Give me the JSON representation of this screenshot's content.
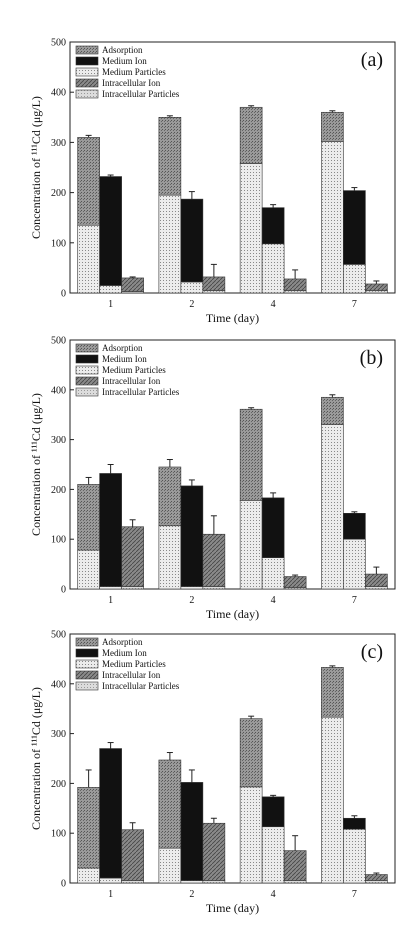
{
  "legend_labels": [
    "Adsorption",
    "Medium Ion",
    "Medium Particles",
    "Intracellular Ion",
    "Intracellular Particles"
  ],
  "series_colors": {
    "Adsorption": "#8c8c8c",
    "Medium Ion": "#111111",
    "Medium Particles": "#e6e6e6",
    "Intracellular Ion": "#7a7a7a",
    "Intracellular Particles": "#d4d4d4"
  },
  "chart_data": [
    {
      "type": "bar",
      "panel_label": "(a)",
      "xlabel": "Time (day)",
      "ylabel": "Concentration of ¹¹¹Cd (μg/L)",
      "ylim": [
        0,
        500
      ],
      "yticks": [
        "0",
        "100",
        "200",
        "300",
        "400",
        "500"
      ],
      "categories": [
        "1",
        "2",
        "4",
        "7"
      ],
      "legend": "top-left",
      "grid": false,
      "stacks": [
        {
          "segments": [
            {
              "series": "Medium Particles",
              "value": 135
            },
            {
              "series": "Adsorption",
              "value": 175
            }
          ],
          "error": 4
        },
        {
          "segments": [
            {
              "series": "Medium Particles",
              "value": 15
            },
            {
              "series": "Medium Ion",
              "value": 217
            }
          ],
          "error": 3
        },
        {
          "segments": [
            {
              "series": "Intracellular Particles",
              "value": 3
            },
            {
              "series": "Intracellular Ion",
              "value": 27
            }
          ],
          "error": 2
        }
      ],
      "groups": [
        [
          {
            "segments": [
              {
                "series": "Medium Particles",
                "value": 135
              },
              {
                "series": "Adsorption",
                "value": 175
              }
            ],
            "error": 4
          },
          {
            "segments": [
              {
                "series": "Medium Particles",
                "value": 15
              },
              {
                "series": "Medium Ion",
                "value": 217
              }
            ],
            "error": 3
          },
          {
            "segments": [
              {
                "series": "Intracellular Particles",
                "value": 3
              },
              {
                "series": "Intracellular Ion",
                "value": 27
              }
            ],
            "error": 2
          }
        ],
        [
          {
            "segments": [
              {
                "series": "Medium Particles",
                "value": 195
              },
              {
                "series": "Adsorption",
                "value": 155
              }
            ],
            "error": 3
          },
          {
            "segments": [
              {
                "series": "Medium Particles",
                "value": 22
              },
              {
                "series": "Medium Ion",
                "value": 165
              }
            ],
            "error": 15
          },
          {
            "segments": [
              {
                "series": "Intracellular Particles",
                "value": 5
              },
              {
                "series": "Intracellular Ion",
                "value": 27
              }
            ],
            "error": 25
          }
        ],
        [
          {
            "segments": [
              {
                "series": "Medium Particles",
                "value": 258
              },
              {
                "series": "Adsorption",
                "value": 112
              }
            ],
            "error": 3
          },
          {
            "segments": [
              {
                "series": "Medium Particles",
                "value": 98
              },
              {
                "series": "Medium Ion",
                "value": 72
              }
            ],
            "error": 6
          },
          {
            "segments": [
              {
                "series": "Intracellular Particles",
                "value": 5
              },
              {
                "series": "Intracellular Ion",
                "value": 23
              }
            ],
            "error": 18
          }
        ],
        [
          {
            "segments": [
              {
                "series": "Medium Particles",
                "value": 302
              },
              {
                "series": "Adsorption",
                "value": 58
              }
            ],
            "error": 3
          },
          {
            "segments": [
              {
                "series": "Medium Particles",
                "value": 57
              },
              {
                "series": "Medium Ion",
                "value": 147
              }
            ],
            "error": 6
          },
          {
            "segments": [
              {
                "series": "Intracellular Particles",
                "value": 5
              },
              {
                "series": "Intracellular Ion",
                "value": 13
              }
            ],
            "error": 6
          }
        ]
      ]
    },
    {
      "type": "bar",
      "panel_label": "(b)",
      "xlabel": "Time (day)",
      "ylabel": "Concentration of ¹¹¹Cd (μg/L)",
      "ylim": [
        0,
        500
      ],
      "yticks": [
        "0",
        "100",
        "200",
        "300",
        "400",
        "500"
      ],
      "categories": [
        "1",
        "2",
        "4",
        "7"
      ],
      "legend": "top-left",
      "grid": false,
      "groups": [
        [
          {
            "segments": [
              {
                "series": "Medium Particles",
                "value": 78
              },
              {
                "series": "Adsorption",
                "value": 132
              }
            ],
            "error": 14
          },
          {
            "segments": [
              {
                "series": "Medium Particles",
                "value": 5
              },
              {
                "series": "Medium Ion",
                "value": 227
              }
            ],
            "error": 18
          },
          {
            "segments": [
              {
                "series": "Intracellular Particles",
                "value": 5
              },
              {
                "series": "Intracellular Ion",
                "value": 120
              }
            ],
            "error": 14
          }
        ],
        [
          {
            "segments": [
              {
                "series": "Medium Particles",
                "value": 127
              },
              {
                "series": "Adsorption",
                "value": 118
              }
            ],
            "error": 15
          },
          {
            "segments": [
              {
                "series": "Medium Particles",
                "value": 5
              },
              {
                "series": "Medium Ion",
                "value": 202
              }
            ],
            "error": 12
          },
          {
            "segments": [
              {
                "series": "Intracellular Particles",
                "value": 5
              },
              {
                "series": "Intracellular Ion",
                "value": 105
              }
            ],
            "error": 37
          }
        ],
        [
          {
            "segments": [
              {
                "series": "Medium Particles",
                "value": 178
              },
              {
                "series": "Adsorption",
                "value": 183
              }
            ],
            "error": 3
          },
          {
            "segments": [
              {
                "series": "Medium Particles",
                "value": 63
              },
              {
                "series": "Medium Ion",
                "value": 120
              }
            ],
            "error": 10
          },
          {
            "segments": [
              {
                "series": "Intracellular Particles",
                "value": 3
              },
              {
                "series": "Intracellular Ion",
                "value": 22
              }
            ],
            "error": 3
          }
        ],
        [
          {
            "segments": [
              {
                "series": "Medium Particles",
                "value": 330
              },
              {
                "series": "Adsorption",
                "value": 55
              }
            ],
            "error": 5
          },
          {
            "segments": [
              {
                "series": "Medium Particles",
                "value": 100
              },
              {
                "series": "Medium Ion",
                "value": 52
              }
            ],
            "error": 3
          },
          {
            "segments": [
              {
                "series": "Intracellular Particles",
                "value": 5
              },
              {
                "series": "Intracellular Ion",
                "value": 25
              }
            ],
            "error": 14
          }
        ]
      ]
    },
    {
      "type": "bar",
      "panel_label": "(c)",
      "xlabel": "Time (day)",
      "ylabel": "Concentration of ¹¹¹Cd (μg/L)",
      "ylim": [
        0,
        500
      ],
      "yticks": [
        "0",
        "100",
        "200",
        "300",
        "400",
        "500"
      ],
      "categories": [
        "1",
        "2",
        "4",
        "7"
      ],
      "legend": "top-left",
      "grid": false,
      "groups": [
        [
          {
            "segments": [
              {
                "series": "Medium Particles",
                "value": 30
              },
              {
                "series": "Adsorption",
                "value": 162
              }
            ],
            "error": 35
          },
          {
            "segments": [
              {
                "series": "Medium Particles",
                "value": 10
              },
              {
                "series": "Medium Ion",
                "value": 260
              }
            ],
            "error": 12
          },
          {
            "segments": [
              {
                "series": "Intracellular Particles",
                "value": 5
              },
              {
                "series": "Intracellular Ion",
                "value": 102
              }
            ],
            "error": 14
          }
        ],
        [
          {
            "segments": [
              {
                "series": "Medium Particles",
                "value": 70
              },
              {
                "series": "Adsorption",
                "value": 177
              }
            ],
            "error": 15
          },
          {
            "segments": [
              {
                "series": "Medium Particles",
                "value": 5
              },
              {
                "series": "Medium Ion",
                "value": 197
              }
            ],
            "error": 25
          },
          {
            "segments": [
              {
                "series": "Intracellular Particles",
                "value": 5
              },
              {
                "series": "Intracellular Ion",
                "value": 115
              }
            ],
            "error": 10
          }
        ],
        [
          {
            "segments": [
              {
                "series": "Medium Particles",
                "value": 193
              },
              {
                "series": "Adsorption",
                "value": 137
              }
            ],
            "error": 5
          },
          {
            "segments": [
              {
                "series": "Medium Particles",
                "value": 113
              },
              {
                "series": "Medium Ion",
                "value": 60
              }
            ],
            "error": 3
          },
          {
            "segments": [
              {
                "series": "Intracellular Particles",
                "value": 5
              },
              {
                "series": "Intracellular Ion",
                "value": 60
              }
            ],
            "error": 30
          }
        ],
        [
          {
            "segments": [
              {
                "series": "Medium Particles",
                "value": 333
              },
              {
                "series": "Adsorption",
                "value": 100
              }
            ],
            "error": 3
          },
          {
            "segments": [
              {
                "series": "Medium Particles",
                "value": 108
              },
              {
                "series": "Medium Ion",
                "value": 22
              }
            ],
            "error": 5
          },
          {
            "segments": [
              {
                "series": "Intracellular Particles",
                "value": 5
              },
              {
                "series": "Intracellular Ion",
                "value": 12
              }
            ],
            "error": 3
          }
        ]
      ]
    }
  ]
}
